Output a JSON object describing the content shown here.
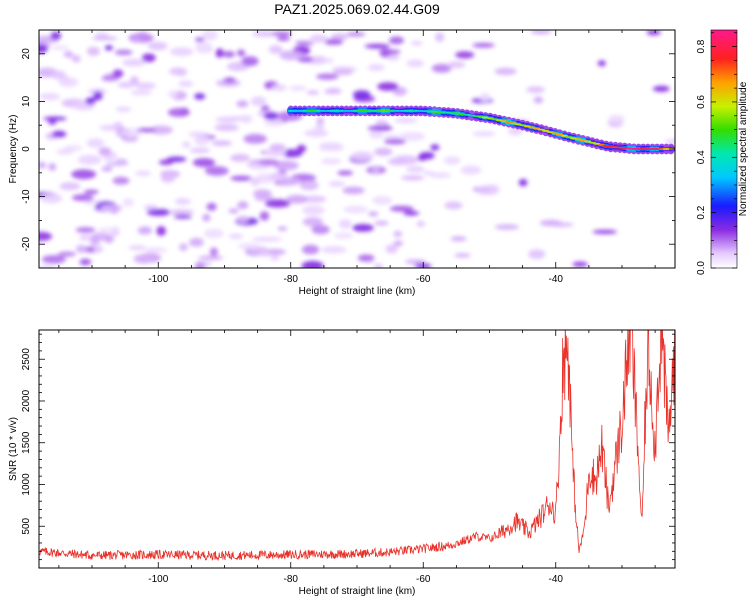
{
  "figure": {
    "title": "PAZ1.2025.069.02.44.G09"
  },
  "chart_data": [
    {
      "type": "heatmap",
      "title": "",
      "xlabel": "Height of straight line (km)",
      "ylabel": "Frequency (Hz)",
      "xlim": [
        -118,
        -22
      ],
      "ylim": [
        -25,
        25
      ],
      "xticks": [
        -100,
        -80,
        -60,
        -40
      ],
      "yticks": [
        -20,
        -10,
        0,
        10,
        20
      ],
      "colorbar": {
        "label": "Normalized spectral amplitude",
        "range": [
          0,
          0.86
        ],
        "ticks": [
          0.0,
          0.2,
          0.4,
          0.6,
          0.8
        ],
        "colormap": "rainbow (white-violet-blue-cyan-green-yellow-red-magenta)"
      },
      "signal_ridge": {
        "description_points": [
          {
            "x": -80,
            "y": 8.0,
            "amp": 0.35
          },
          {
            "x": -75,
            "y": 8.0,
            "amp": 0.4
          },
          {
            "x": -70,
            "y": 8.0,
            "amp": 0.42
          },
          {
            "x": -65,
            "y": 8.0,
            "amp": 0.45
          },
          {
            "x": -60,
            "y": 8.0,
            "amp": 0.4
          },
          {
            "x": -55,
            "y": 7.5,
            "amp": 0.45
          },
          {
            "x": -50,
            "y": 6.5,
            "amp": 0.55
          },
          {
            "x": -45,
            "y": 5.0,
            "amp": 0.6
          },
          {
            "x": -42,
            "y": 4.0,
            "amp": 0.7
          },
          {
            "x": -38,
            "y": 2.5,
            "amp": 0.55
          },
          {
            "x": -35,
            "y": 1.5,
            "amp": 0.6
          },
          {
            "x": -32,
            "y": 0.5,
            "amp": 0.8
          },
          {
            "x": -28,
            "y": 0.0,
            "amp": 0.82
          },
          {
            "x": -24,
            "y": 0.0,
            "amp": 0.75
          },
          {
            "x": -22,
            "y": 0.0,
            "amp": 0.7
          }
        ]
      },
      "noise_level": "low (0.0-0.2), scattered patches at x < -55"
    },
    {
      "type": "line",
      "title": "",
      "xlabel": "Height of straight line (km)",
      "ylabel": "SNR (10 * v/v)",
      "xlim": [
        -118,
        -22
      ],
      "ylim": [
        0,
        2850
      ],
      "xticks": [
        -100,
        -80,
        -60,
        -40
      ],
      "yticks": [
        500,
        1000,
        1500,
        2000,
        2500
      ],
      "color": "#e8322a",
      "series": [
        {
          "x": [
            -118,
            -110,
            -100,
            -90,
            -80,
            -70,
            -65,
            -60,
            -56,
            -54,
            -52,
            -50,
            -48,
            -46,
            -44,
            -42,
            -41,
            -40,
            -39.5,
            -39,
            -38.5,
            -38,
            -37.5,
            -37,
            -36.5,
            -36,
            -35.5,
            -35,
            -34,
            -33,
            -32,
            -31,
            -30,
            -29.5,
            -29,
            -28.5,
            -28,
            -27.5,
            -27,
            -26.5,
            -26,
            -25.5,
            -25,
            -24.5,
            -24,
            -23,
            -22
          ],
          "y": [
            200,
            150,
            160,
            150,
            160,
            170,
            190,
            230,
            270,
            320,
            380,
            350,
            430,
            560,
            420,
            640,
            780,
            650,
            1350,
            2300,
            2640,
            2550,
            1300,
            700,
            200,
            350,
            600,
            1200,
            1050,
            1450,
            700,
            1250,
            1750,
            2200,
            2850,
            2650,
            2000,
            1300,
            450,
            1800,
            2600,
            2100,
            1400,
            2400,
            2800,
            1550,
            2650
          ]
        }
      ]
    }
  ]
}
